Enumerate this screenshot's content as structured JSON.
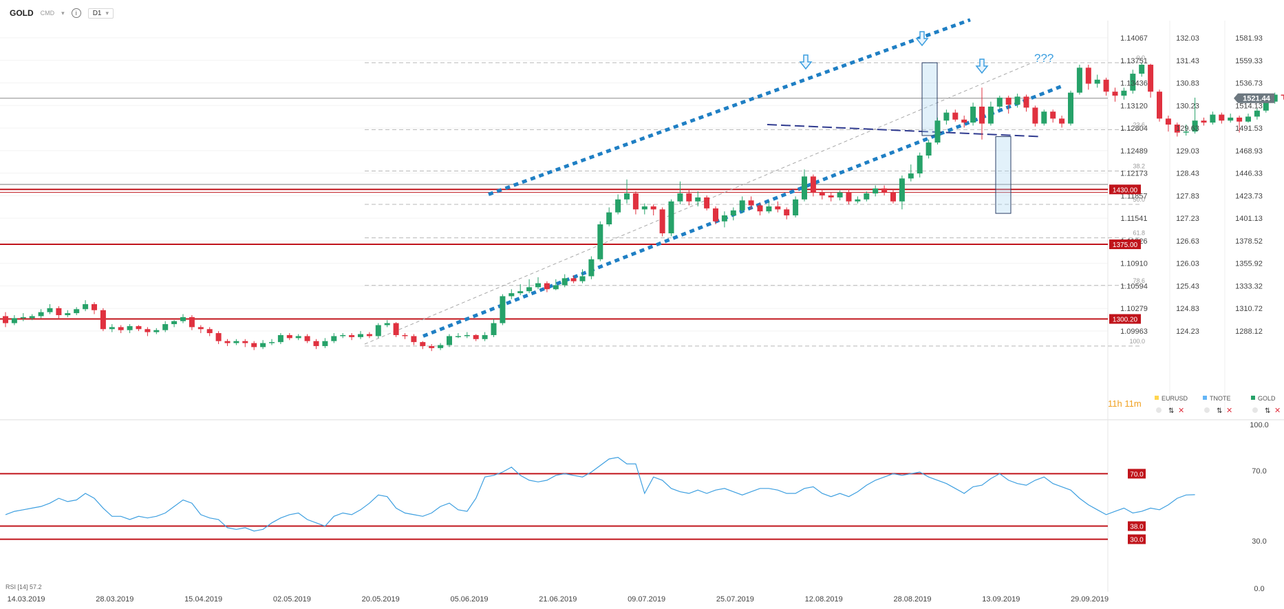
{
  "toolbar": {
    "symbol": "GOLD",
    "market": "CMD",
    "info": "i",
    "timeframe": "D1"
  },
  "countdown": {
    "hours": "11",
    "h": "h",
    "minutes": "11",
    "m": "m"
  },
  "legend": [
    {
      "label": "EURUSD",
      "color": "#ffd54f"
    },
    {
      "label": "TNOTE",
      "color": "#64b5f6"
    },
    {
      "label": "GOLD",
      "color": "#26a269"
    }
  ],
  "colors": {
    "up": "#26a269",
    "down": "#e0313f",
    "level": "#c0141b",
    "channel": "#1f7fc4",
    "rsi": "#3d9fe0",
    "price_tag": "#6d7880"
  },
  "axes": {
    "eurusd": [
      "1.14067",
      "1.13751",
      "1.13436",
      "1.13120",
      "1.12804",
      "1.12489",
      "1.12173",
      "1.11857",
      "1.11541",
      "1.11226",
      "1.10910",
      "1.10594",
      "1.10279",
      "1.09963"
    ],
    "tnote": [
      "132.03",
      "131.43",
      "130.83",
      "130.23",
      "129.63",
      "129.03",
      "128.43",
      "127.83",
      "127.23",
      "126.63",
      "126.03",
      "125.43",
      "124.83",
      "124.23"
    ],
    "gold": [
      "1581.93",
      "1559.33",
      "1536.73",
      "1514.13",
      "1491.53",
      "1468.93",
      "1446.33",
      "1423.73",
      "1401.13",
      "1378.52",
      "1355.92",
      "1333.32",
      "1310.72",
      "1288.12"
    ],
    "rsi": [
      "100.0",
      "70.0",
      "30.0",
      "0.0"
    ],
    "dates": [
      "14.03.2019",
      "28.03.2019",
      "15.04.2019",
      "02.05.2019",
      "20.05.2019",
      "05.06.2019",
      "21.06.2019",
      "09.07.2019",
      "25.07.2019",
      "12.08.2019",
      "28.08.2019",
      "13.09.2019",
      "29.09.2019"
    ]
  },
  "price_label": "1521.44",
  "levels": [
    {
      "label": "1430.00",
      "value": 1430
    },
    {
      "label": "1375.00",
      "value": 1375
    },
    {
      "label": "1300.20",
      "value": 1300.2
    }
  ],
  "fib": [
    "0.0",
    "23.6",
    "38.2",
    "50.0",
    "61.8",
    "78.6",
    "100.0"
  ],
  "rsi_levels": [
    {
      "label": "70.0",
      "value": 70
    },
    {
      "label": "38.0",
      "value": 38
    },
    {
      "label": "30.0",
      "value": 30
    }
  ],
  "rsi_title": "RSI [14]",
  "rsi_value": "57.2",
  "annotation": "???",
  "chart_data": {
    "type": "candlestick",
    "series": "GOLD",
    "rsi_series": [
      45,
      47,
      48,
      49,
      50,
      52,
      55,
      53,
      54,
      58,
      55,
      49,
      44,
      44,
      42,
      44,
      43,
      44,
      46,
      50,
      54,
      52,
      45,
      43,
      42,
      37,
      36,
      37,
      35,
      36,
      40,
      43,
      45,
      46,
      42,
      40,
      38,
      44,
      46,
      45,
      48,
      52,
      57,
      56,
      49,
      46,
      45,
      44,
      46,
      50,
      52,
      48,
      47,
      55,
      68,
      69,
      71,
      74,
      69,
      66,
      65,
      66,
      69,
      70,
      69,
      68,
      71,
      75,
      79,
      80,
      76,
      76,
      58,
      68,
      66,
      61,
      59,
      58,
      60,
      58,
      60,
      61,
      59,
      57,
      59,
      61,
      61,
      60,
      58,
      58,
      61,
      62,
      58,
      56,
      58,
      56,
      59,
      63,
      66,
      68,
      70,
      69,
      70,
      71,
      68,
      66,
      64,
      61,
      58,
      62,
      63,
      67,
      70,
      66,
      64,
      63,
      66,
      68,
      64,
      62,
      60,
      55,
      51,
      48,
      45,
      47,
      49,
      46,
      47,
      49,
      48,
      51,
      55,
      57,
      57.2
    ],
    "candles": [
      {
        "o": 1303,
        "c": 1296,
        "h": 1307,
        "l": 1292
      },
      {
        "o": 1296,
        "c": 1301,
        "h": 1304,
        "l": 1294
      },
      {
        "o": 1301,
        "c": 1302,
        "h": 1306,
        "l": 1298
      },
      {
        "o": 1301,
        "c": 1303,
        "h": 1305,
        "l": 1299
      },
      {
        "o": 1303,
        "c": 1307,
        "h": 1310,
        "l": 1301
      },
      {
        "o": 1307,
        "c": 1311,
        "h": 1315,
        "l": 1305
      },
      {
        "o": 1311,
        "c": 1304,
        "h": 1313,
        "l": 1300
      },
      {
        "o": 1304,
        "c": 1306,
        "h": 1309,
        "l": 1302
      },
      {
        "o": 1306,
        "c": 1310,
        "h": 1312,
        "l": 1304
      },
      {
        "o": 1310,
        "c": 1315,
        "h": 1319,
        "l": 1308
      },
      {
        "o": 1315,
        "c": 1309,
        "h": 1317,
        "l": 1305
      },
      {
        "o": 1309,
        "c": 1290,
        "h": 1311,
        "l": 1288
      },
      {
        "o": 1290,
        "c": 1292,
        "h": 1295,
        "l": 1287
      },
      {
        "o": 1292,
        "c": 1289,
        "h": 1294,
        "l": 1286
      },
      {
        "o": 1289,
        "c": 1293,
        "h": 1295,
        "l": 1286
      },
      {
        "o": 1293,
        "c": 1290,
        "h": 1294,
        "l": 1288
      },
      {
        "o": 1290,
        "c": 1287,
        "h": 1292,
        "l": 1283
      },
      {
        "o": 1287,
        "c": 1289,
        "h": 1291,
        "l": 1285
      },
      {
        "o": 1289,
        "c": 1295,
        "h": 1298,
        "l": 1287
      },
      {
        "o": 1295,
        "c": 1298,
        "h": 1299,
        "l": 1292
      },
      {
        "o": 1298,
        "c": 1302,
        "h": 1305,
        "l": 1296
      },
      {
        "o": 1302,
        "c": 1292,
        "h": 1304,
        "l": 1289
      },
      {
        "o": 1292,
        "c": 1290,
        "h": 1294,
        "l": 1286
      },
      {
        "o": 1290,
        "c": 1286,
        "h": 1292,
        "l": 1283
      },
      {
        "o": 1286,
        "c": 1278,
        "h": 1288,
        "l": 1275
      },
      {
        "o": 1278,
        "c": 1276,
        "h": 1280,
        "l": 1273
      },
      {
        "o": 1276,
        "c": 1278,
        "h": 1280,
        "l": 1274
      },
      {
        "o": 1278,
        "c": 1276,
        "h": 1280,
        "l": 1272
      },
      {
        "o": 1276,
        "c": 1272,
        "h": 1278,
        "l": 1269
      },
      {
        "o": 1272,
        "c": 1276,
        "h": 1279,
        "l": 1270
      },
      {
        "o": 1276,
        "c": 1277,
        "h": 1280,
        "l": 1274
      },
      {
        "o": 1277,
        "c": 1284,
        "h": 1286,
        "l": 1275
      },
      {
        "o": 1284,
        "c": 1281,
        "h": 1286,
        "l": 1279
      },
      {
        "o": 1281,
        "c": 1283,
        "h": 1285,
        "l": 1279
      },
      {
        "o": 1283,
        "c": 1278,
        "h": 1285,
        "l": 1276
      },
      {
        "o": 1278,
        "c": 1273,
        "h": 1280,
        "l": 1270
      },
      {
        "o": 1273,
        "c": 1278,
        "h": 1281,
        "l": 1271
      },
      {
        "o": 1278,
        "c": 1283,
        "h": 1286,
        "l": 1276
      },
      {
        "o": 1283,
        "c": 1284,
        "h": 1286,
        "l": 1281
      },
      {
        "o": 1284,
        "c": 1282,
        "h": 1286,
        "l": 1279
      },
      {
        "o": 1282,
        "c": 1285,
        "h": 1288,
        "l": 1280
      },
      {
        "o": 1285,
        "c": 1283,
        "h": 1287,
        "l": 1281
      },
      {
        "o": 1283,
        "c": 1294,
        "h": 1296,
        "l": 1281
      },
      {
        "o": 1294,
        "c": 1296,
        "h": 1299,
        "l": 1292
      },
      {
        "o": 1296,
        "c": 1284,
        "h": 1297,
        "l": 1282
      },
      {
        "o": 1284,
        "c": 1283,
        "h": 1286,
        "l": 1280
      },
      {
        "o": 1283,
        "c": 1277,
        "h": 1285,
        "l": 1274
      },
      {
        "o": 1277,
        "c": 1273,
        "h": 1278,
        "l": 1270
      },
      {
        "o": 1273,
        "c": 1271,
        "h": 1275,
        "l": 1268
      },
      {
        "o": 1271,
        "c": 1274,
        "h": 1276,
        "l": 1269
      },
      {
        "o": 1274,
        "c": 1283,
        "h": 1285,
        "l": 1272
      },
      {
        "o": 1283,
        "c": 1283,
        "h": 1286,
        "l": 1281
      },
      {
        "o": 1283,
        "c": 1284,
        "h": 1287,
        "l": 1281
      },
      {
        "o": 1284,
        "c": 1280,
        "h": 1285,
        "l": 1278
      },
      {
        "o": 1280,
        "c": 1284,
        "h": 1287,
        "l": 1278
      },
      {
        "o": 1284,
        "c": 1296,
        "h": 1300,
        "l": 1282
      },
      {
        "o": 1296,
        "c": 1323,
        "h": 1325,
        "l": 1294
      },
      {
        "o": 1323,
        "c": 1326,
        "h": 1330,
        "l": 1320
      },
      {
        "o": 1326,
        "c": 1328,
        "h": 1335,
        "l": 1324
      },
      {
        "o": 1328,
        "c": 1332,
        "h": 1340,
        "l": 1326
      },
      {
        "o": 1332,
        "c": 1336,
        "h": 1342,
        "l": 1330
      },
      {
        "o": 1336,
        "c": 1330,
        "h": 1338,
        "l": 1327
      },
      {
        "o": 1330,
        "c": 1334,
        "h": 1340,
        "l": 1329
      },
      {
        "o": 1334,
        "c": 1341,
        "h": 1345,
        "l": 1332
      },
      {
        "o": 1341,
        "c": 1338,
        "h": 1344,
        "l": 1336
      },
      {
        "o": 1338,
        "c": 1343,
        "h": 1350,
        "l": 1336
      },
      {
        "o": 1343,
        "c": 1360,
        "h": 1363,
        "l": 1340
      },
      {
        "o": 1360,
        "c": 1395,
        "h": 1398,
        "l": 1358
      },
      {
        "o": 1395,
        "c": 1407,
        "h": 1412,
        "l": 1393
      },
      {
        "o": 1407,
        "c": 1420,
        "h": 1425,
        "l": 1405
      },
      {
        "o": 1420,
        "c": 1426,
        "h": 1440,
        "l": 1416
      },
      {
        "o": 1426,
        "c": 1410,
        "h": 1428,
        "l": 1405
      },
      {
        "o": 1410,
        "c": 1413,
        "h": 1416,
        "l": 1405
      },
      {
        "o": 1413,
        "c": 1410,
        "h": 1415,
        "l": 1404
      },
      {
        "o": 1410,
        "c": 1386,
        "h": 1412,
        "l": 1383
      },
      {
        "o": 1386,
        "c": 1418,
        "h": 1420,
        "l": 1383
      },
      {
        "o": 1418,
        "c": 1426,
        "h": 1438,
        "l": 1415
      },
      {
        "o": 1426,
        "c": 1418,
        "h": 1430,
        "l": 1414
      },
      {
        "o": 1418,
        "c": 1422,
        "h": 1428,
        "l": 1413
      },
      {
        "o": 1422,
        "c": 1411,
        "h": 1424,
        "l": 1409
      },
      {
        "o": 1411,
        "c": 1398,
        "h": 1413,
        "l": 1395
      },
      {
        "o": 1398,
        "c": 1404,
        "h": 1408,
        "l": 1392
      },
      {
        "o": 1404,
        "c": 1409,
        "h": 1412,
        "l": 1399
      },
      {
        "o": 1409,
        "c": 1419,
        "h": 1423,
        "l": 1406
      },
      {
        "o": 1419,
        "c": 1414,
        "h": 1423,
        "l": 1410
      },
      {
        "o": 1414,
        "c": 1408,
        "h": 1416,
        "l": 1404
      },
      {
        "o": 1408,
        "c": 1413,
        "h": 1418,
        "l": 1406
      },
      {
        "o": 1413,
        "c": 1410,
        "h": 1418,
        "l": 1407
      },
      {
        "o": 1410,
        "c": 1404,
        "h": 1412,
        "l": 1400
      },
      {
        "o": 1404,
        "c": 1420,
        "h": 1423,
        "l": 1402
      },
      {
        "o": 1420,
        "c": 1443,
        "h": 1450,
        "l": 1418
      },
      {
        "o": 1443,
        "c": 1427,
        "h": 1445,
        "l": 1423
      },
      {
        "o": 1427,
        "c": 1424,
        "h": 1430,
        "l": 1420
      },
      {
        "o": 1424,
        "c": 1422,
        "h": 1427,
        "l": 1418
      },
      {
        "o": 1422,
        "c": 1427,
        "h": 1429,
        "l": 1419
      },
      {
        "o": 1427,
        "c": 1418,
        "h": 1430,
        "l": 1415
      },
      {
        "o": 1418,
        "c": 1420,
        "h": 1423,
        "l": 1416
      },
      {
        "o": 1420,
        "c": 1426,
        "h": 1428,
        "l": 1418
      },
      {
        "o": 1426,
        "c": 1431,
        "h": 1434,
        "l": 1423
      },
      {
        "o": 1431,
        "c": 1427,
        "h": 1434,
        "l": 1424
      },
      {
        "o": 1427,
        "c": 1418,
        "h": 1430,
        "l": 1416
      },
      {
        "o": 1418,
        "c": 1441,
        "h": 1444,
        "l": 1410
      },
      {
        "o": 1441,
        "c": 1446,
        "h": 1455,
        "l": 1438
      },
      {
        "o": 1446,
        "c": 1464,
        "h": 1467,
        "l": 1442
      },
      {
        "o": 1464,
        "c": 1477,
        "h": 1480,
        "l": 1461
      },
      {
        "o": 1477,
        "c": 1499,
        "h": 1502,
        "l": 1475
      },
      {
        "o": 1499,
        "c": 1507,
        "h": 1510,
        "l": 1495
      },
      {
        "o": 1507,
        "c": 1500,
        "h": 1510,
        "l": 1498
      },
      {
        "o": 1500,
        "c": 1497,
        "h": 1504,
        "l": 1492
      },
      {
        "o": 1497,
        "c": 1513,
        "h": 1517,
        "l": 1494
      },
      {
        "o": 1513,
        "c": 1496,
        "h": 1532,
        "l": 1480
      },
      {
        "o": 1496,
        "c": 1513,
        "h": 1518,
        "l": 1494
      },
      {
        "o": 1513,
        "c": 1522,
        "h": 1524,
        "l": 1510
      },
      {
        "o": 1522,
        "c": 1515,
        "h": 1524,
        "l": 1506
      },
      {
        "o": 1515,
        "c": 1523,
        "h": 1526,
        "l": 1512
      },
      {
        "o": 1523,
        "c": 1512,
        "h": 1525,
        "l": 1508
      },
      {
        "o": 1512,
        "c": 1496,
        "h": 1514,
        "l": 1493
      },
      {
        "o": 1496,
        "c": 1508,
        "h": 1510,
        "l": 1494
      },
      {
        "o": 1508,
        "c": 1501,
        "h": 1510,
        "l": 1497
      },
      {
        "o": 1501,
        "c": 1496,
        "h": 1504,
        "l": 1492
      },
      {
        "o": 1496,
        "c": 1527,
        "h": 1529,
        "l": 1494
      },
      {
        "o": 1527,
        "c": 1552,
        "h": 1555,
        "l": 1525
      },
      {
        "o": 1552,
        "c": 1536,
        "h": 1555,
        "l": 1530
      },
      {
        "o": 1536,
        "c": 1540,
        "h": 1545,
        "l": 1532
      },
      {
        "o": 1540,
        "c": 1528,
        "h": 1542,
        "l": 1524
      },
      {
        "o": 1528,
        "c": 1524,
        "h": 1532,
        "l": 1518
      },
      {
        "o": 1524,
        "c": 1529,
        "h": 1532,
        "l": 1520
      },
      {
        "o": 1529,
        "c": 1546,
        "h": 1550,
        "l": 1526
      },
      {
        "o": 1546,
        "c": 1555,
        "h": 1557,
        "l": 1543
      },
      {
        "o": 1555,
        "c": 1528,
        "h": 1556,
        "l": 1522
      },
      {
        "o": 1528,
        "c": 1501,
        "h": 1530,
        "l": 1498
      },
      {
        "o": 1501,
        "c": 1495,
        "h": 1504,
        "l": 1488
      },
      {
        "o": 1495,
        "c": 1487,
        "h": 1497,
        "l": 1483
      },
      {
        "o": 1487,
        "c": 1488,
        "h": 1495,
        "l": 1484
      },
      {
        "o": 1488,
        "c": 1499,
        "h": 1522,
        "l": 1486
      },
      {
        "o": 1499,
        "c": 1497,
        "h": 1502,
        "l": 1494
      },
      {
        "o": 1497,
        "c": 1505,
        "h": 1508,
        "l": 1495
      },
      {
        "o": 1505,
        "c": 1499,
        "h": 1507,
        "l": 1496
      },
      {
        "o": 1499,
        "c": 1502,
        "h": 1506,
        "l": 1497
      },
      {
        "o": 1502,
        "c": 1498,
        "h": 1504,
        "l": 1487
      },
      {
        "o": 1498,
        "c": 1503,
        "h": 1506,
        "l": 1497
      },
      {
        "o": 1503,
        "c": 1509,
        "h": 1511,
        "l": 1500
      },
      {
        "o": 1509,
        "c": 1518,
        "h": 1519,
        "l": 1507
      },
      {
        "o": 1518,
        "c": 1525,
        "h": 1527,
        "l": 1516
      },
      {
        "o": 1525,
        "c": 1524,
        "h": 1525,
        "l": 1520
      }
    ]
  }
}
